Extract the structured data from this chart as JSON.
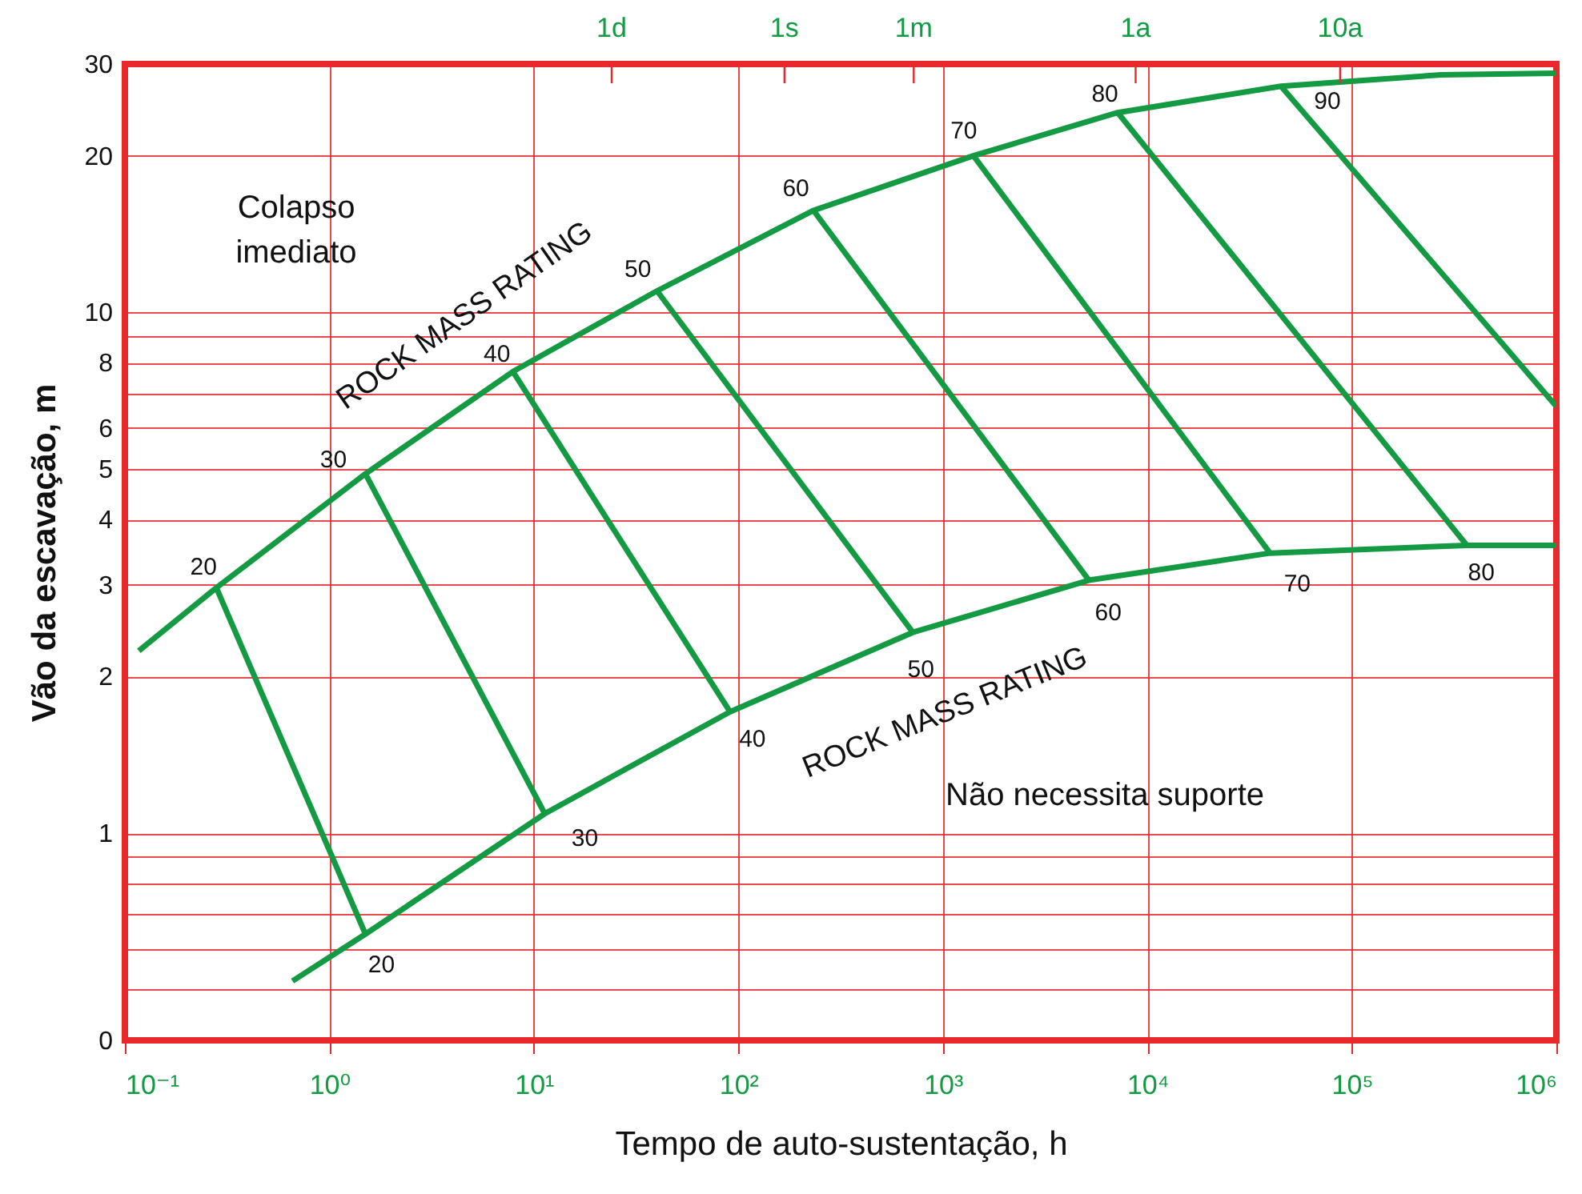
{
  "chart_data": {
    "type": "line",
    "xlabel": "Tempo de auto-sustentação, h",
    "ylabel": "Vão da escavação, m",
    "log": "xy",
    "xlim": [
      0.1,
      1000000
    ],
    "xticks": [
      {
        "value": 0.1,
        "label": "10⁻¹"
      },
      {
        "value": 1,
        "label": "10⁰"
      },
      {
        "value": 10,
        "label": "10¹"
      },
      {
        "value": 100,
        "label": "10²"
      },
      {
        "value": 1000,
        "label": "10³"
      },
      {
        "value": 10000,
        "label": "10⁴"
      },
      {
        "value": 100000,
        "label": "10⁵"
      },
      {
        "value": 1000000,
        "label": "10⁶"
      }
    ],
    "ref_lines": [
      {
        "axis": "x",
        "value": 24,
        "label": "1d",
        "color": "#e8282a"
      },
      {
        "axis": "x",
        "value": 168,
        "label": "1s",
        "color": "#e8282a"
      },
      {
        "axis": "x",
        "value": 720,
        "label": "1m",
        "color": "#e8282a"
      },
      {
        "axis": "x",
        "value": 8760,
        "label": "1a",
        "color": "#e8282a"
      },
      {
        "axis": "x",
        "value": 87600,
        "label": "10a",
        "color": "#e8282a"
      }
    ],
    "ylim": [
      0.4,
      30
    ],
    "yticks": [
      {
        "value": 0.4,
        "label": "0"
      },
      {
        "value": 0.5,
        "label": null
      },
      {
        "value": 0.6,
        "label": null
      },
      {
        "value": 0.7,
        "label": null
      },
      {
        "value": 0.8,
        "label": null
      },
      {
        "value": 0.9,
        "label": null
      },
      1,
      2,
      3,
      4,
      5,
      6,
      {
        "value": 7,
        "label": null
      },
      8,
      {
        "value": 9,
        "label": null
      },
      10,
      20,
      30
    ],
    "grid": true,
    "line_style": "solid",
    "series": [
      {
        "color": "#139a43",
        "x": [
          0.117,
          0.28,
          1.5,
          7.9,
          40,
          233,
          1410,
          7160,
          45000,
          274000,
          1000000
        ],
        "values": [
          2.24,
          2.96,
          4.9,
          7.7,
          11.0,
          15.7,
          20,
          24.2,
          27.2,
          28.6,
          28.8
        ]
      },
      {
        "color": "#139a43",
        "x": [
          0.66,
          1.5,
          11.3,
          91,
          713,
          5180,
          39800,
          365000,
          1000000
        ],
        "values": [
          0.52,
          0.64,
          1.09,
          1.71,
          2.43,
          3.06,
          3.45,
          3.57,
          3.57
        ]
      },
      {
        "color": "#139a43",
        "x": [
          0.28,
          1.5
        ],
        "values": [
          2.96,
          0.64
        ]
      },
      {
        "color": "#139a43",
        "x": [
          1.5,
          11.3
        ],
        "values": [
          4.9,
          1.09
        ]
      },
      {
        "color": "#139a43",
        "x": [
          7.9,
          91
        ],
        "values": [
          7.7,
          1.71
        ]
      },
      {
        "color": "#139a43",
        "x": [
          40,
          713
        ],
        "values": [
          11.0,
          2.43
        ]
      },
      {
        "color": "#139a43",
        "x": [
          233,
          5180
        ],
        "values": [
          15.7,
          3.06
        ]
      },
      {
        "color": "#139a43",
        "x": [
          1410,
          39800
        ],
        "values": [
          20,
          3.45
        ]
      },
      {
        "color": "#139a43",
        "x": [
          7160,
          365000
        ],
        "values": [
          24.2,
          3.57
        ]
      },
      {
        "color": "#139a43",
        "x": [
          45000,
          1000000
        ],
        "values": [
          27.2,
          6.6
        ]
      }
    ],
    "annotations": [
      "Colapso\nimediato",
      "Não necessita suporte",
      "ROCK MASS RATING",
      "ROCK MASS RATING",
      {
        "text": "20",
        "x": 0.28,
        "y": 2.96
      },
      {
        "text": "30",
        "x": 1.5,
        "y": 4.9
      },
      {
        "text": "40",
        "x": 7.9,
        "y": 7.7
      },
      {
        "text": "50",
        "x": 40,
        "y": 11.0
      },
      {
        "text": "60",
        "x": 233,
        "y": 15.7
      },
      {
        "text": "70",
        "x": 1410,
        "y": 20
      },
      {
        "text": "80",
        "x": 7160,
        "y": 24.2
      },
      {
        "text": "90",
        "x": 45000,
        "y": 27.2
      },
      {
        "text": "20",
        "x": 1.5,
        "y": 0.64
      },
      {
        "text": "30",
        "x": 11.3,
        "y": 1.09
      },
      {
        "text": "40",
        "x": 91,
        "y": 1.71
      },
      {
        "text": "50",
        "x": 713,
        "y": 2.43
      },
      {
        "text": "60",
        "x": 5180,
        "y": 3.06
      },
      {
        "text": "70",
        "x": 39800,
        "y": 3.45
      },
      {
        "text": "80",
        "x": 365000,
        "y": 3.57
      }
    ]
  }
}
